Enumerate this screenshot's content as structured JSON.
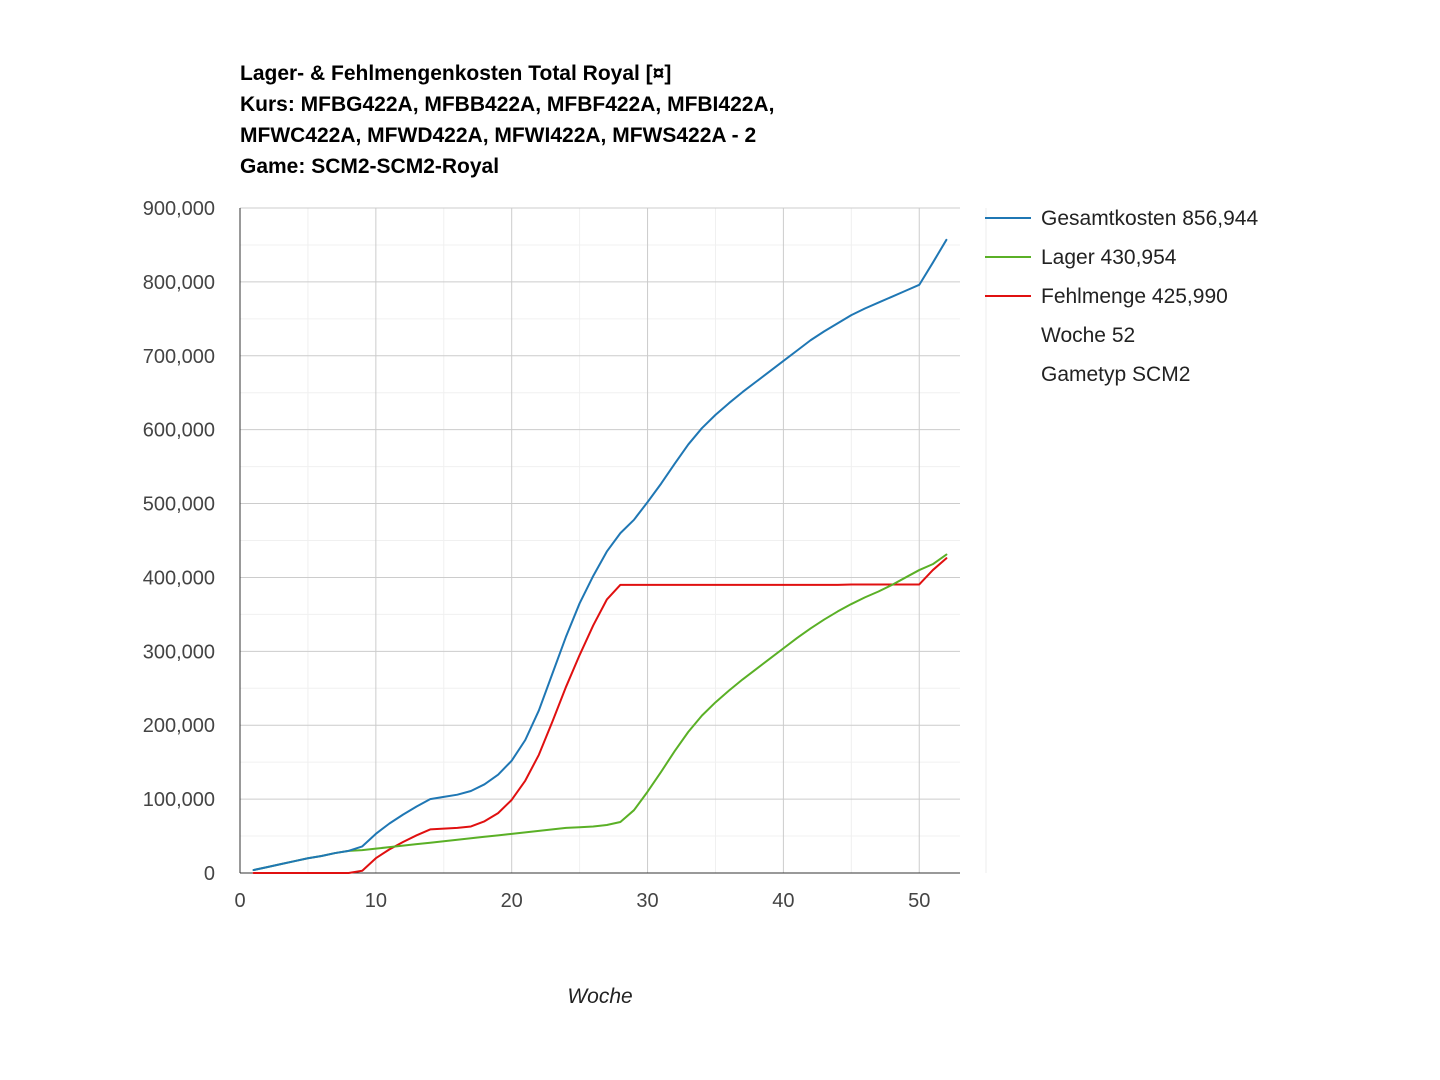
{
  "chart_data": {
    "type": "line",
    "title_lines": [
      "Lager- & Fehlmengenkosten Total Royal [¤]",
      "Kurs: MFBG422A, MFBB422A, MFBF422A, MFBI422A,",
      "MFWC422A, MFWD422A, MFWI422A, MFWS422A - 2",
      "Game: SCM2-SCM2-Royal"
    ],
    "xlabel": "Woche",
    "ylabel": "",
    "xlim": [
      0,
      53
    ],
    "ylim": [
      0,
      900000
    ],
    "x_ticks": [
      0,
      10,
      20,
      30,
      40,
      50
    ],
    "x_tick_labels": [
      "0",
      "10",
      "20",
      "30",
      "40",
      "50"
    ],
    "y_ticks": [
      0,
      100000,
      200000,
      300000,
      400000,
      500000,
      600000,
      700000,
      800000,
      900000
    ],
    "y_tick_labels": [
      "0",
      "100,000",
      "200,000",
      "300,000",
      "400,000",
      "500,000",
      "600,000",
      "700,000",
      "800,000",
      "900,000"
    ],
    "grid": true,
    "legend_position": "right",
    "x": [
      1,
      2,
      3,
      4,
      5,
      6,
      7,
      8,
      9,
      10,
      11,
      12,
      13,
      14,
      15,
      16,
      17,
      18,
      19,
      20,
      21,
      22,
      23,
      24,
      25,
      26,
      27,
      28,
      29,
      30,
      31,
      32,
      33,
      34,
      35,
      36,
      37,
      38,
      39,
      40,
      41,
      42,
      43,
      44,
      45,
      46,
      47,
      48,
      49,
      50,
      51,
      52
    ],
    "series": [
      {
        "name": "Gesamtkosten 856,944",
        "color": "#1f77b4",
        "values": [
          4000,
          8000,
          12000,
          16000,
          20000,
          23000,
          27000,
          30000,
          36000,
          53000,
          67000,
          79000,
          90000,
          100000,
          103000,
          106000,
          111000,
          120000,
          133000,
          152000,
          180000,
          220000,
          270000,
          320000,
          365000,
          402000,
          435000,
          460000,
          478000,
          502000,
          527000,
          554000,
          580000,
          602000,
          620000,
          636000,
          651000,
          665000,
          679000,
          693000,
          707000,
          721000,
          733000,
          744000,
          755000,
          764000,
          772000,
          780000,
          788000,
          796000,
          826000,
          856944
        ]
      },
      {
        "name": "Lager 430,954",
        "color": "#5ab026",
        "values": [
          4000,
          8000,
          12000,
          16000,
          20000,
          23000,
          27000,
          30000,
          31000,
          33000,
          35000,
          37000,
          39000,
          41000,
          43000,
          45000,
          47000,
          49000,
          51000,
          53000,
          55000,
          57000,
          59000,
          61000,
          62000,
          63000,
          65000,
          69000,
          85000,
          110000,
          137000,
          165000,
          191000,
          213000,
          231000,
          247000,
          262000,
          276000,
          290000,
          304000,
          318000,
          331000,
          343000,
          354000,
          364000,
          373000,
          381000,
          390000,
          400000,
          410000,
          418000,
          430954
        ]
      },
      {
        "name": "Fehlmenge 425,990",
        "color": "#e01010",
        "values": [
          0,
          0,
          0,
          0,
          0,
          0,
          0,
          0,
          3000,
          20000,
          32000,
          42000,
          51000,
          59000,
          60000,
          61000,
          63000,
          70000,
          81000,
          99000,
          125000,
          160000,
          205000,
          252000,
          295000,
          335000,
          370000,
          390000,
          390000,
          390000,
          390000,
          390000,
          390000,
          390000,
          390000,
          390000,
          390000,
          390000,
          390000,
          390000,
          390000,
          390000,
          390000,
          390000,
          390500,
          390500,
          390500,
          390500,
          390500,
          390500,
          410000,
          425990
        ]
      }
    ],
    "legend_extra": [
      "Woche 52",
      "Gametyp SCM2"
    ]
  }
}
